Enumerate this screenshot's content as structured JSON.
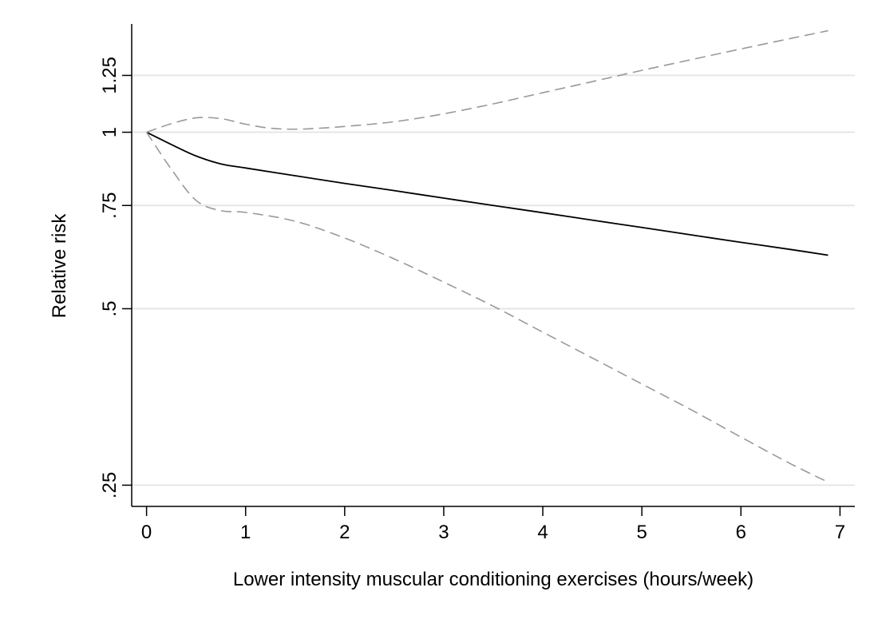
{
  "chart_data": {
    "type": "line",
    "xlabel": "Lower intensity muscular conditioning exercises (hours/week)",
    "ylabel": "Relative risk",
    "y_scale": "log",
    "xlim": [
      -0.15,
      7.15
    ],
    "ylim": [
      0.23,
      1.53
    ],
    "x_ticks": [
      0,
      1,
      2,
      3,
      4,
      5,
      6,
      7
    ],
    "x_tick_labels": [
      "0",
      "1",
      "2",
      "3",
      "4",
      "5",
      "6",
      "7"
    ],
    "y_ticks": [
      0.25,
      0.5,
      0.75,
      1,
      1.25
    ],
    "y_tick_labels": [
      ".25",
      ".5",
      ".75",
      "1",
      "1.25"
    ],
    "grid": "horizontal",
    "legend": "none",
    "series": [
      {
        "style": "solid",
        "color": "#000000",
        "x": [
          0,
          0.25,
          0.5,
          0.75,
          1,
          1.5,
          2,
          2.5,
          3,
          3.5,
          4,
          4.5,
          5,
          5.5,
          6,
          6.5,
          6.88
        ],
        "y": [
          1.0,
          0.953,
          0.911,
          0.883,
          0.869,
          0.843,
          0.818,
          0.795,
          0.772,
          0.75,
          0.729,
          0.708,
          0.688,
          0.668,
          0.649,
          0.631,
          0.617
        ]
      },
      {
        "style": "dashed",
        "color": "#999999",
        "x": [
          0,
          0.25,
          0.5,
          0.75,
          1,
          1.25,
          1.5,
          1.75,
          2,
          2.5,
          3,
          3.5,
          4,
          4.5,
          5,
          5.5,
          6,
          6.5,
          6.88
        ],
        "y": [
          1.0,
          1.034,
          1.058,
          1.055,
          1.032,
          1.016,
          1.012,
          1.016,
          1.023,
          1.042,
          1.075,
          1.118,
          1.168,
          1.22,
          1.275,
          1.33,
          1.387,
          1.445,
          1.49
        ]
      },
      {
        "style": "dashed",
        "color": "#999999",
        "x": [
          0,
          0.25,
          0.5,
          0.75,
          1,
          1.5,
          2,
          2.5,
          3,
          3.5,
          4,
          4.5,
          5,
          5.5,
          6,
          6.5,
          6.88
        ],
        "y": [
          1.0,
          0.865,
          0.765,
          0.735,
          0.73,
          0.705,
          0.66,
          0.608,
          0.555,
          0.505,
          0.456,
          0.412,
          0.372,
          0.336,
          0.302,
          0.272,
          0.253
        ]
      }
    ]
  }
}
